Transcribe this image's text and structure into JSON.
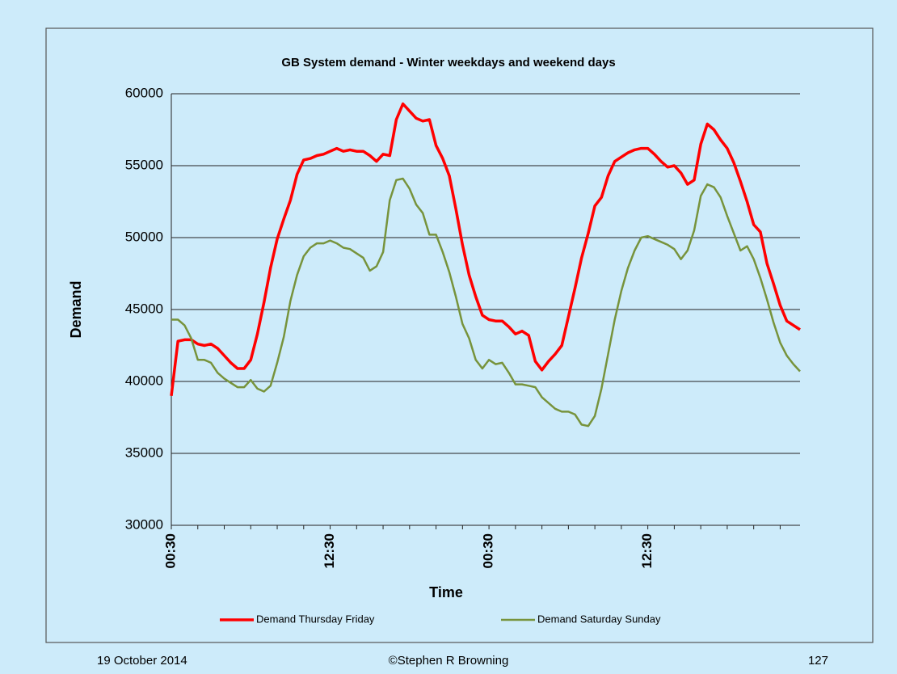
{
  "chart_data": {
    "type": "line",
    "title": "GB System demand - Winter weekdays and weekend days",
    "x_label": "Time",
    "y_label": "Demand",
    "categories": [
      "00:30",
      null,
      null,
      null,
      null,
      null,
      null,
      null,
      null,
      null,
      null,
      null,
      null,
      null,
      null,
      null,
      null,
      null,
      null,
      null,
      null,
      null,
      null,
      null,
      "12:30",
      null,
      null,
      null,
      null,
      null,
      null,
      null,
      null,
      null,
      null,
      null,
      null,
      null,
      null,
      null,
      null,
      null,
      null,
      null,
      null,
      null,
      null,
      null,
      "00:30",
      null,
      null,
      null,
      null,
      null,
      null,
      null,
      null,
      null,
      null,
      null,
      null,
      null,
      null,
      null,
      null,
      null,
      null,
      null,
      null,
      null,
      null,
      null,
      "12:30",
      null,
      null,
      null,
      null,
      null,
      null,
      null,
      null,
      null,
      null,
      null,
      null,
      null,
      null,
      null,
      null,
      null,
      null,
      null,
      null,
      null,
      null,
      null
    ],
    "series": [
      {
        "name": "Demand Thursday Friday",
        "color": "#ff0000",
        "values": [
          39000,
          42800,
          42900,
          42900,
          42600,
          42500,
          42600,
          42300,
          41800,
          41300,
          40900,
          40900,
          41500,
          43300,
          45500,
          47900,
          49900,
          51300,
          52600,
          54400,
          55400,
          55500,
          55700,
          55800,
          56000,
          56200,
          56000,
          56100,
          56000,
          56000,
          55700,
          55300,
          55800,
          55700,
          58200,
          59300,
          58800,
          58300,
          58100,
          58200,
          56400,
          55500,
          54300,
          52000,
          49500,
          47400,
          45900,
          44600,
          44300,
          44200,
          44200,
          43800,
          43300,
          43500,
          43200,
          41400,
          40800,
          41400,
          41900,
          42500,
          44500,
          46500,
          48600,
          50300,
          52200,
          52800,
          54300,
          55300,
          55600,
          55900,
          56100,
          56200,
          56200,
          55800,
          55300,
          54900,
          55000,
          54500,
          53700,
          54000,
          56500,
          57900,
          57500,
          56800,
          56200,
          55200,
          53900,
          52500,
          50900,
          50400,
          48200,
          46800,
          45300,
          44200,
          43900,
          43600
        ]
      },
      {
        "name": "Demand Saturday Sunday",
        "color": "#77933c",
        "values": [
          44300,
          44300,
          43900,
          43000,
          41500,
          41500,
          41300,
          40600,
          40200,
          39900,
          39600,
          39600,
          40100,
          39500,
          39300,
          39700,
          41300,
          43100,
          45600,
          47400,
          48700,
          49300,
          49600,
          49600,
          49800,
          49600,
          49300,
          49200,
          48900,
          48600,
          47700,
          48000,
          49000,
          52600,
          54000,
          54100,
          53400,
          52300,
          51700,
          50200,
          50200,
          49000,
          47600,
          45900,
          44000,
          43000,
          41500,
          40900,
          41500,
          41200,
          41300,
          40600,
          39800,
          39800,
          39700,
          39600,
          38900,
          38500,
          38100,
          37900,
          37900,
          37700,
          37000,
          36900,
          37600,
          39500,
          41900,
          44300,
          46300,
          47900,
          49100,
          50000,
          50100,
          49900,
          49700,
          49500,
          49200,
          48500,
          49100,
          50500,
          52900,
          53700,
          53500,
          52800,
          51500,
          50300,
          49100,
          49400,
          48500,
          47200,
          45700,
          44100,
          42700,
          41800,
          41200,
          40700
        ]
      }
    ],
    "ylim": [
      30000,
      60000
    ],
    "yticks": [
      30000,
      35000,
      40000,
      45000,
      50000,
      55000,
      60000
    ],
    "grid": true,
    "legend": "bottom"
  },
  "footer": {
    "date": "19 October 2014",
    "copyright": "©Stephen R Browning",
    "page": "127"
  }
}
